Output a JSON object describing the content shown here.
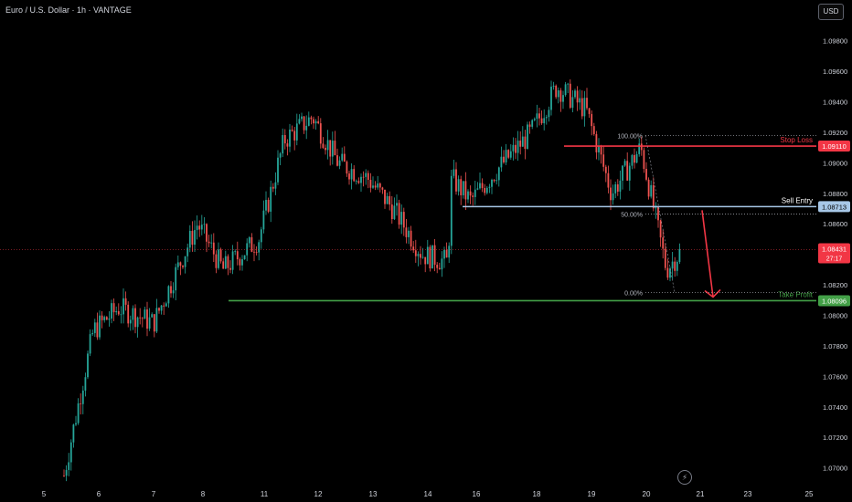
{
  "header": {
    "symbol_title": "Euro / U.S. Dollar · 1h · VANTAGE",
    "currency_button": "USD"
  },
  "icons": {
    "flash": "lightning-icon"
  },
  "colors": {
    "up": "#26a69a",
    "down": "#ef5350",
    "stop_loss": "#f23645",
    "entry": "#a7c7e7",
    "take_profit": "#43a047",
    "current": "#f23645"
  },
  "chart_data": {
    "type": "candlestick",
    "title": "Euro / U.S. Dollar · 1h · VANTAGE",
    "y_axis": {
      "ticks": [
        "1.09800",
        "1.09600",
        "1.09400",
        "1.09200",
        "1.09000",
        "1.08800",
        "1.08600",
        "1.08400",
        "1.08200",
        "1.08000",
        "1.07800",
        "1.07600",
        "1.07400",
        "1.07200",
        "1.07000"
      ],
      "range": [
        1.0692,
        1.099
      ]
    },
    "x_axis": {
      "ticks": [
        "5",
        "6",
        "7",
        "8",
        "11",
        "12",
        "13",
        "14",
        "15",
        "16",
        "18",
        "19",
        "20",
        "21",
        "23",
        "25"
      ]
    },
    "price_path": [
      {
        "date": "5",
        "price": 1.0695
      },
      {
        "date": "6",
        "price": 1.079
      },
      {
        "date": "6",
        "price": 1.0805
      },
      {
        "date": "7",
        "price": 1.0795
      },
      {
        "date": "8",
        "price": 1.086
      },
      {
        "date": "8",
        "price": 1.083
      },
      {
        "date": "11",
        "price": 1.085
      },
      {
        "date": "11",
        "price": 1.0915
      },
      {
        "date": "12",
        "price": 1.093
      },
      {
        "date": "12",
        "price": 1.09
      },
      {
        "date": "13",
        "price": 1.089
      },
      {
        "date": "13",
        "price": 1.087
      },
      {
        "date": "14",
        "price": 1.084
      },
      {
        "date": "14",
        "price": 1.0835
      },
      {
        "date": "15",
        "price": 1.089
      },
      {
        "date": "16",
        "price": 1.0875
      },
      {
        "date": "16",
        "price": 1.0895
      },
      {
        "date": "18",
        "price": 1.092
      },
      {
        "date": "18",
        "price": 1.095
      },
      {
        "date": "19",
        "price": 1.0935
      },
      {
        "date": "19",
        "price": 1.088
      },
      {
        "date": "20",
        "price": 1.091
      },
      {
        "date": "20",
        "price": 1.083
      },
      {
        "date": "21",
        "price": 1.0843
      }
    ],
    "levels": [
      {
        "name": "Stop Loss",
        "price_label": "1.09110",
        "price": 1.0911
      },
      {
        "name": "Sell Entry",
        "price_label": "1.08713",
        "price": 1.08713
      },
      {
        "name": "Take Profit",
        "price_label": "1.08096",
        "price": 1.08096
      }
    ],
    "current_price": {
      "price_label": "1.08431",
      "countdown": "27:17",
      "price": 1.08431
    },
    "fibonacci": [
      {
        "label": "100.00%",
        "price": 1.0918
      },
      {
        "label": "50.00%",
        "price": 1.08665
      },
      {
        "label": "0.00%",
        "price": 1.0815
      }
    ],
    "grid": false,
    "annotation": "red arrow from Sell Entry down to Take Profit"
  }
}
